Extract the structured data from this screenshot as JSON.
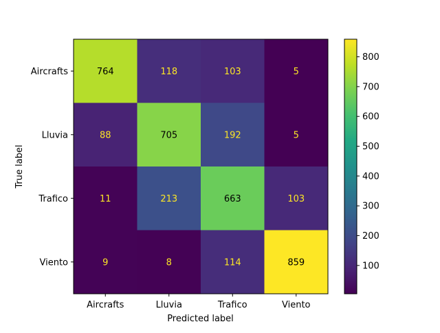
{
  "chart_data": {
    "type": "heatmap",
    "title": "",
    "xlabel": "Predicted label",
    "ylabel": "True label",
    "x_categories": [
      "Aircrafts",
      "Lluvia",
      "Trafico",
      "Viento"
    ],
    "y_categories": [
      "Aircrafts",
      "Lluvia",
      "Trafico",
      "Viento"
    ],
    "matrix": [
      [
        764,
        118,
        103,
        5
      ],
      [
        88,
        705,
        192,
        5
      ],
      [
        11,
        213,
        663,
        103
      ],
      [
        9,
        8,
        114,
        859
      ]
    ],
    "colormap": "viridis",
    "colorbar": {
      "range": [
        5,
        859
      ],
      "ticks": [
        100,
        200,
        300,
        400,
        500,
        600,
        700,
        800
      ],
      "tick_labels": [
        "100",
        "200",
        "300",
        "400",
        "500",
        "600",
        "700",
        "800"
      ]
    },
    "grid": false,
    "text_colors": {
      "light": "#fde725",
      "dark": "#000000"
    }
  }
}
